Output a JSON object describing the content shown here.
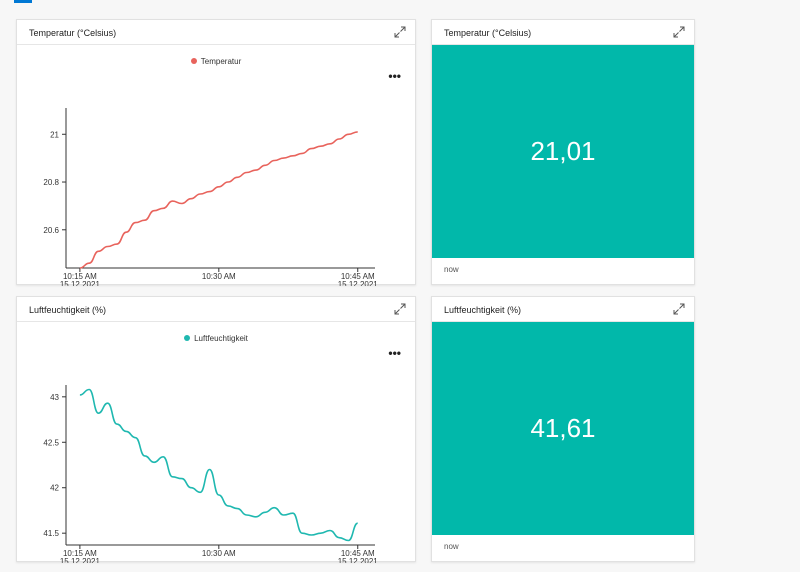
{
  "colors": {
    "accent": "#0078d4",
    "temp_series": "#e8635c",
    "humid_series": "#1fb8b0",
    "kpi_bg": "#01b8aa"
  },
  "tiles": [
    {
      "title": "Temperatur (°Celsius)",
      "legend": "Temperatur",
      "more_label": "•••",
      "expand_icon": "expand-icon"
    },
    {
      "title": "Temperatur (°Celsius)",
      "value": "21,01",
      "footer": "now",
      "expand_icon": "expand-icon"
    },
    {
      "title": "Luftfeuchtigkeit (%)",
      "legend": "Luftfeuchtigkeit",
      "more_label": "•••",
      "expand_icon": "expand-icon"
    },
    {
      "title": "Luftfeuchtigkeit (%)",
      "value": "41,61",
      "footer": "now",
      "expand_icon": "expand-icon"
    }
  ],
  "chart_data": [
    {
      "type": "line",
      "title": "Temperatur (°Celsius)",
      "xlabel": "",
      "ylabel": "",
      "x_ticks": [
        {
          "minute": 0,
          "label": [
            "10:15 AM",
            "15.12.2021"
          ]
        },
        {
          "minute": 15,
          "label": [
            "10:30 AM"
          ]
        },
        {
          "minute": 30,
          "label": [
            "10:45 AM",
            "15.12.2021"
          ]
        }
      ],
      "y_ticks": [
        20.6,
        20.8,
        21
      ],
      "y_tick_labels": [
        "20.6",
        "20.8",
        "21"
      ],
      "ylim": [
        20.44,
        21.11
      ],
      "xlim": [
        -1.5,
        31
      ],
      "grid": false,
      "series": [
        {
          "name": "Temperatur",
          "points": [
            [
              0,
              20.44
            ],
            [
              1,
              20.46
            ],
            [
              2,
              20.51
            ],
            [
              3,
              20.53
            ],
            [
              4,
              20.54
            ],
            [
              5,
              20.59
            ],
            [
              6,
              20.63
            ],
            [
              7,
              20.64
            ],
            [
              8,
              20.68
            ],
            [
              9,
              20.69
            ],
            [
              10,
              20.72
            ],
            [
              11,
              20.71
            ],
            [
              12,
              20.73
            ],
            [
              13,
              20.75
            ],
            [
              14,
              20.76
            ],
            [
              15,
              20.78
            ],
            [
              16,
              20.8
            ],
            [
              17,
              20.82
            ],
            [
              18,
              20.84
            ],
            [
              19,
              20.85
            ],
            [
              20,
              20.87
            ],
            [
              21,
              20.89
            ],
            [
              22,
              20.9
            ],
            [
              23,
              20.91
            ],
            [
              24,
              20.92
            ],
            [
              25,
              20.94
            ],
            [
              26,
              20.95
            ],
            [
              27,
              20.96
            ],
            [
              28,
              20.98
            ],
            [
              29,
              21.0
            ],
            [
              30,
              21.01
            ]
          ]
        }
      ]
    },
    {
      "type": "line",
      "title": "Luftfeuchtigkeit (%)",
      "xlabel": "",
      "ylabel": "",
      "x_ticks": [
        {
          "minute": 0,
          "label": [
            "10:15 AM",
            "15.12.2021"
          ]
        },
        {
          "minute": 15,
          "label": [
            "10:30 AM"
          ]
        },
        {
          "minute": 30,
          "label": [
            "10:45 AM",
            "15.12.2021"
          ]
        }
      ],
      "y_ticks": [
        41.5,
        42,
        42.5,
        43
      ],
      "y_tick_labels": [
        "41.5",
        "42",
        "42.5",
        "43"
      ],
      "ylim": [
        41.37,
        43.13
      ],
      "xlim": [
        -1.5,
        31
      ],
      "grid": false,
      "series": [
        {
          "name": "Luftfeuchtigkeit",
          "points": [
            [
              0,
              43.02
            ],
            [
              1,
              43.08
            ],
            [
              2,
              42.82
            ],
            [
              3,
              42.93
            ],
            [
              4,
              42.7
            ],
            [
              5,
              42.62
            ],
            [
              6,
              42.55
            ],
            [
              7,
              42.35
            ],
            [
              8,
              42.28
            ],
            [
              9,
              42.34
            ],
            [
              10,
              42.12
            ],
            [
              11,
              42.1
            ],
            [
              12,
              42.0
            ],
            [
              13,
              41.95
            ],
            [
              14,
              42.2
            ],
            [
              15,
              41.92
            ],
            [
              16,
              41.8
            ],
            [
              17,
              41.77
            ],
            [
              18,
              41.7
            ],
            [
              19,
              41.68
            ],
            [
              20,
              41.73
            ],
            [
              21,
              41.78
            ],
            [
              22,
              41.7
            ],
            [
              23,
              41.72
            ],
            [
              24,
              41.5
            ],
            [
              25,
              41.48
            ],
            [
              26,
              41.5
            ],
            [
              27,
              41.53
            ],
            [
              28,
              41.45
            ],
            [
              29,
              41.42
            ],
            [
              30,
              41.61
            ]
          ]
        }
      ]
    }
  ]
}
